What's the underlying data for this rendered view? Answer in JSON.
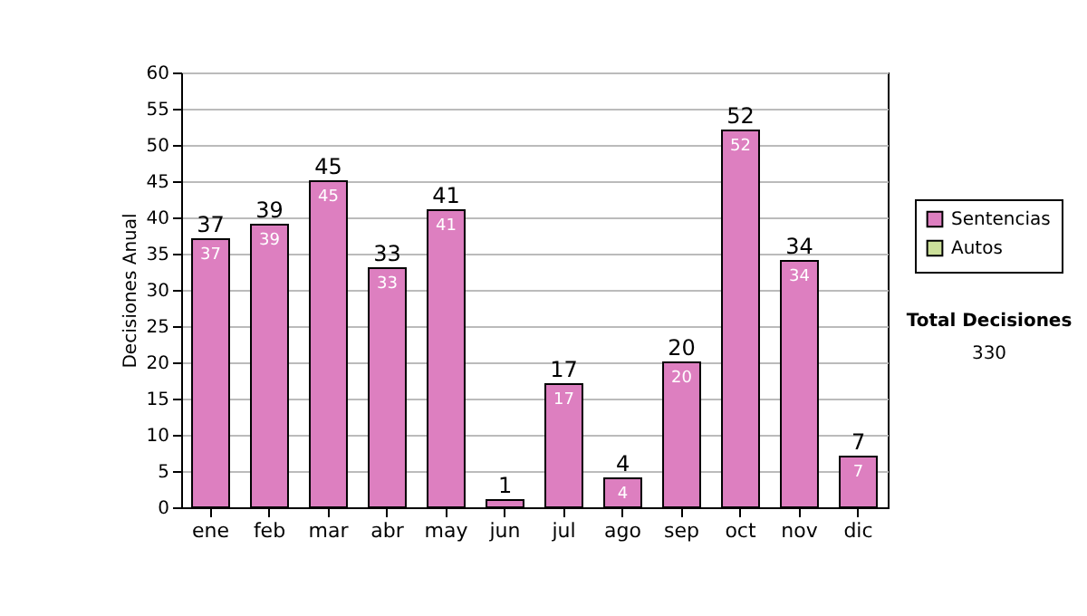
{
  "chart_data": {
    "type": "bar",
    "stacked": true,
    "ylabel": "Decisiones Anual",
    "categories": [
      "ene",
      "feb",
      "mar",
      "abr",
      "may",
      "jun",
      "jul",
      "ago",
      "sep",
      "oct",
      "nov",
      "dic"
    ],
    "series": [
      {
        "name": "Sentencias",
        "color": "#dd7fc0",
        "values": [
          37,
          39,
          45,
          33,
          41,
          1,
          17,
          4,
          20,
          52,
          34,
          7
        ],
        "value_labels": [
          "37",
          "39",
          "45",
          "33",
          "41",
          null,
          "17",
          "4",
          "20",
          "52",
          "34",
          "7"
        ]
      },
      {
        "name": "Autos",
        "color": "#cce09a",
        "values": [
          0,
          0,
          0,
          0,
          0,
          0,
          0,
          0,
          0,
          0,
          0,
          0
        ]
      }
    ],
    "totals": [
      "37",
      "39",
      "45",
      "33",
      "41",
      "1",
      "17",
      "4",
      "20",
      "52",
      "34",
      "7"
    ],
    "ylim": [
      0,
      60
    ],
    "yticks": [
      0,
      5,
      10,
      15,
      20,
      25,
      30,
      35,
      40,
      45,
      50,
      55,
      60
    ],
    "grid": "y",
    "legend": "right",
    "annotations": [
      "Total Decisiones",
      "330"
    ]
  }
}
